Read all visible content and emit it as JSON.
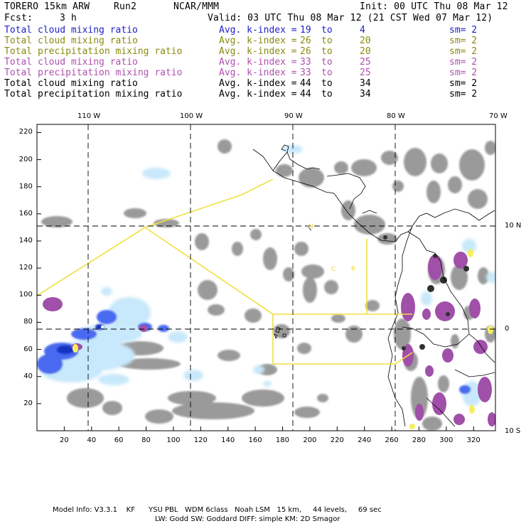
{
  "header": {
    "model": "TORERO",
    "resolution": "15km ARW",
    "run": "Run2",
    "org": "NCAR/MMM",
    "init": "Init: 00 UTC Thu 08 Mar 12",
    "fcst_label": "Fcst:",
    "fcst_value": "3 h",
    "valid": "Valid: 03 UTC Thu 08 Mar 12 (21 CST Wed 07 Mar 12)"
  },
  "legend": [
    {
      "field": "Total cloud mixing ratio",
      "avg": "Avg. k-index =",
      "k1": "19",
      "to": "to",
      "k2": "4",
      "sm": "sm= 2",
      "color": "#2020c8"
    },
    {
      "field": "Total cloud mixing ratio",
      "avg": "Avg. k-index =",
      "k1": "26",
      "to": "to",
      "k2": "20",
      "sm": "sm= 2",
      "color": "#8a8a10"
    },
    {
      "field": "Total precipitation mixing ratio",
      "avg": "Avg. k-index =",
      "k1": "26",
      "to": "to",
      "k2": "20",
      "sm": "sm= 2",
      "color": "#8a8a10"
    },
    {
      "field": "Total cloud mixing ratio",
      "avg": "Avg. k-index =",
      "k1": "33",
      "to": "to",
      "k2": "25",
      "sm": "sm= 2",
      "color": "#b050b0"
    },
    {
      "field": "Total precipitation mixing ratio",
      "avg": "Avg. k-index =",
      "k1": "33",
      "to": "to",
      "k2": "25",
      "sm": "sm= 2",
      "color": "#b050b0"
    },
    {
      "field": "Total cloud mixing ratio",
      "avg": "Avg. k-index =",
      "k1": "44",
      "to": "to",
      "k2": "34",
      "sm": "sm= 2",
      "color": "#000000"
    },
    {
      "field": "Total precipitation mixing ratio",
      "avg": "Avg. k-index =",
      "k1": "44",
      "to": "to",
      "k2": "34",
      "sm": "sm= 2",
      "color": "#000000"
    }
  ],
  "map": {
    "lon_labels": [
      "110 W",
      "100 W",
      "90 W",
      "80 W",
      "70 W"
    ],
    "lat_labels": [
      "10 N",
      "0",
      "10 S"
    ],
    "x_ticks": [
      "20",
      "40",
      "60",
      "80",
      "100",
      "120",
      "140",
      "160",
      "180",
      "200",
      "220",
      "240",
      "260",
      "280",
      "300",
      "320"
    ],
    "y_ticks": [
      "220",
      "200",
      "180",
      "160",
      "140",
      "120",
      "100",
      "80",
      "60",
      "40",
      "20"
    ],
    "country_labels": [
      "N",
      "C",
      "R"
    ]
  },
  "footer": {
    "line1": "Model Info: V3.3.1    KF      YSU PBL   WDM 6class   Noah LSM   15 km,     44 levels,     69 sec",
    "line2": "LW: Godd SW: Goddard DIFF: simple KM: 2D Smagor"
  },
  "colors": {
    "cloud_light": "#c8e8fb",
    "cloud_blue": "#3050e0",
    "gray_cloud": "#9a9a9a",
    "purple": "#a050a8",
    "yellow_line": "#f0e040",
    "yellow_fill": "#f5f060"
  }
}
